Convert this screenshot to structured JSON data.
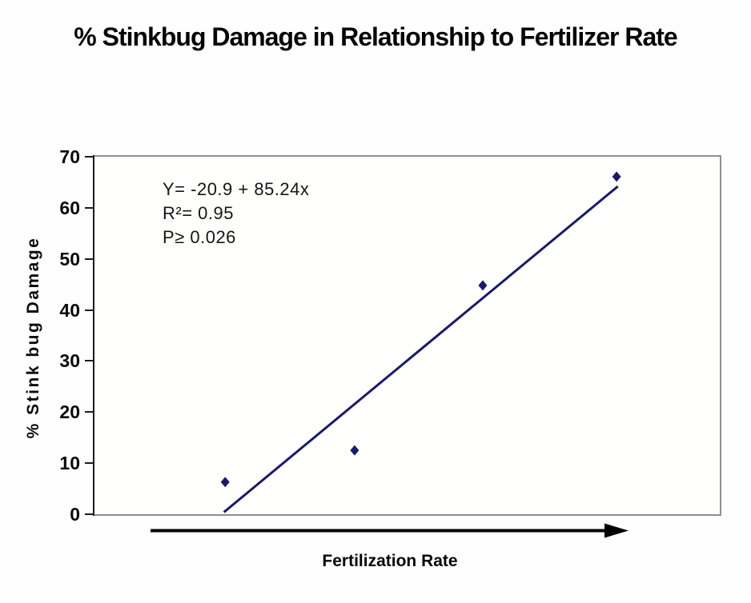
{
  "chart_data": {
    "type": "scatter",
    "title": "% Stinkbug Damage in Relationship to Fertilizer Rate",
    "xlabel": "Fertilization Rate",
    "ylabel": "% Stink bug Damage",
    "ylim": [
      0,
      70
    ],
    "yticks": [
      0,
      10,
      20,
      30,
      40,
      50,
      60,
      70
    ],
    "xticks": [],
    "grid": false,
    "legend": false,
    "marker_shape": "diamond",
    "marker_color": "#1a1a66",
    "line_color": "#1a1a66",
    "axis_border_color": "#8f8f8f",
    "points": [
      {
        "x_frac": 0.209,
        "y": 6.3
      },
      {
        "x_frac": 0.416,
        "y": 12.5
      },
      {
        "x_frac": 0.621,
        "y": 44.8
      },
      {
        "x_frac": 0.835,
        "y": 66.1
      }
    ],
    "trendline": {
      "start": {
        "x_frac": 0.207,
        "y": 0.4
      },
      "end": {
        "x_frac": 0.837,
        "y": 64.2
      },
      "equation": "Y= -20.9 + 85.24x",
      "r_squared": "0.95",
      "p_value": "0.026"
    },
    "annotation_lines": [
      "Y= -20.9 + 85.24x",
      "R²= 0.95",
      "P≥ 0.026"
    ]
  }
}
